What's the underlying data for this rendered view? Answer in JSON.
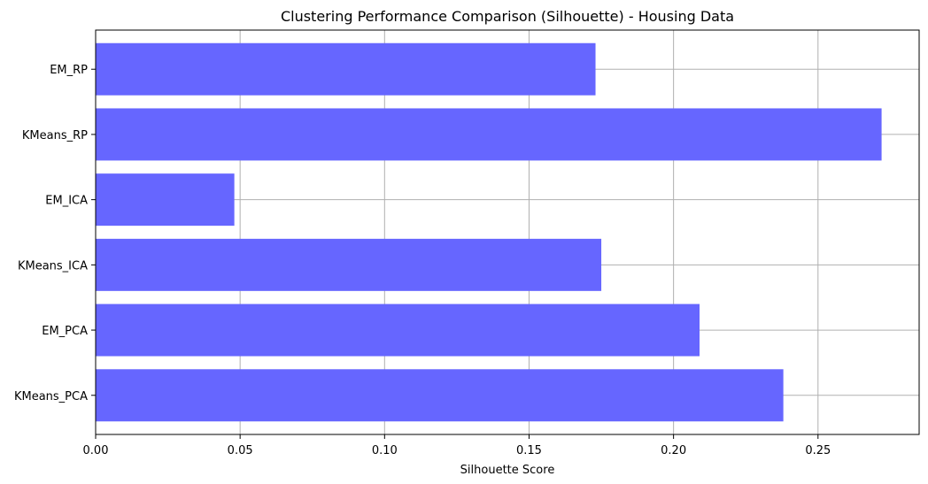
{
  "chart_data": {
    "type": "bar",
    "orientation": "horizontal",
    "title": "Clustering Performance Comparison (Silhouette) - Housing Data",
    "xlabel": "Silhouette Score",
    "ylabel": "",
    "categories": [
      "KMeans_PCA",
      "EM_PCA",
      "KMeans_ICA",
      "EM_ICA",
      "KMeans_RP",
      "EM_RP"
    ],
    "values": [
      0.238,
      0.209,
      0.175,
      0.048,
      0.272,
      0.173
    ],
    "xlim": [
      0,
      0.285
    ],
    "xticks": [
      0.0,
      0.05,
      0.1,
      0.15,
      0.2,
      0.25
    ],
    "xtick_labels": [
      "0.00",
      "0.05",
      "0.10",
      "0.15",
      "0.20",
      "0.25"
    ],
    "grid": true,
    "bar_color": "#6666ff",
    "grid_color": "#b0b0b0"
  }
}
